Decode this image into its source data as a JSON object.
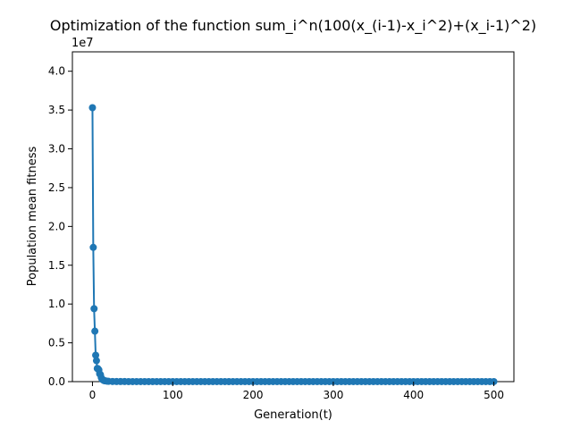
{
  "chart_data": {
    "type": "line",
    "title": "Optimization of the function sum_i^n(100(x_(i-1)-x_i^2)+(x_i-1)^2)",
    "xlabel": "Generation(t)",
    "ylabel": "Population mean fitness",
    "y_offset_label": "1e7",
    "y_scale": 10000000,
    "xlim": [
      -25,
      525
    ],
    "ylim": [
      0,
      42500000
    ],
    "x_ticks": [
      0,
      100,
      200,
      300,
      400,
      500
    ],
    "y_ticks": [
      0,
      5000000,
      10000000,
      15000000,
      20000000,
      25000000,
      30000000,
      35000000,
      40000000
    ],
    "x_tick_labels": [
      "0",
      "100",
      "200",
      "300",
      "400",
      "500"
    ],
    "y_tick_labels": [
      "0.0",
      "0.5",
      "1.0",
      "1.5",
      "2.0",
      "2.5",
      "3.0",
      "3.5",
      "4.0"
    ],
    "grid": false,
    "legend": "none",
    "marker": "circle",
    "series": [
      {
        "color": "#1f77b4",
        "x": [
          0,
          1,
          2,
          3,
          4,
          5,
          6,
          7,
          8,
          9,
          10,
          11,
          12,
          13,
          14,
          15,
          16,
          18,
          20,
          25,
          30,
          35,
          40,
          45,
          50,
          55,
          60,
          65,
          70,
          75,
          80,
          85,
          90,
          95,
          100,
          105,
          110,
          115,
          120,
          125,
          130,
          135,
          140,
          145,
          150,
          155,
          160,
          165,
          170,
          175,
          180,
          185,
          190,
          195,
          200,
          205,
          210,
          215,
          220,
          225,
          230,
          235,
          240,
          245,
          250,
          255,
          260,
          265,
          270,
          275,
          280,
          285,
          290,
          295,
          300,
          305,
          310,
          315,
          320,
          325,
          330,
          335,
          340,
          345,
          350,
          355,
          360,
          365,
          370,
          375,
          380,
          385,
          390,
          395,
          400,
          405,
          410,
          415,
          420,
          425,
          430,
          435,
          440,
          445,
          450,
          455,
          460,
          465,
          470,
          475,
          480,
          485,
          490,
          495,
          500
        ],
        "y": [
          35300000,
          17300000,
          9400000,
          6500000,
          3400000,
          2700000,
          1700000,
          1650000,
          1500000,
          1000000,
          900000,
          500000,
          300000,
          250000,
          150000,
          120000,
          100000,
          60000,
          40000,
          20000,
          12000,
          10000,
          8000,
          6000,
          5000,
          5000,
          4000,
          4000,
          3000,
          3000,
          3000,
          3000,
          2000,
          2000,
          2000,
          2000,
          2000,
          2000,
          2000,
          2000,
          2000,
          2000,
          2000,
          2000,
          2000,
          2000,
          2000,
          2000,
          2000,
          2000,
          2000,
          2000,
          2000,
          2000,
          2000,
          2000,
          2000,
          2000,
          2000,
          2000,
          2000,
          2000,
          2000,
          2000,
          2000,
          2000,
          2000,
          2000,
          2000,
          2000,
          2000,
          2000,
          2000,
          2000,
          2000,
          2000,
          2000,
          2000,
          2000,
          2000,
          2000,
          2000,
          2000,
          2000,
          2000,
          2000,
          2000,
          2000,
          2000,
          2000,
          2000,
          2000,
          2000,
          2000,
          2000,
          2000,
          2000,
          2000,
          2000,
          2000,
          2000,
          2000,
          2000,
          2000,
          2000,
          2000,
          2000,
          2000,
          2000,
          2000,
          2000,
          2000,
          2000,
          2000,
          2000
        ]
      }
    ]
  }
}
